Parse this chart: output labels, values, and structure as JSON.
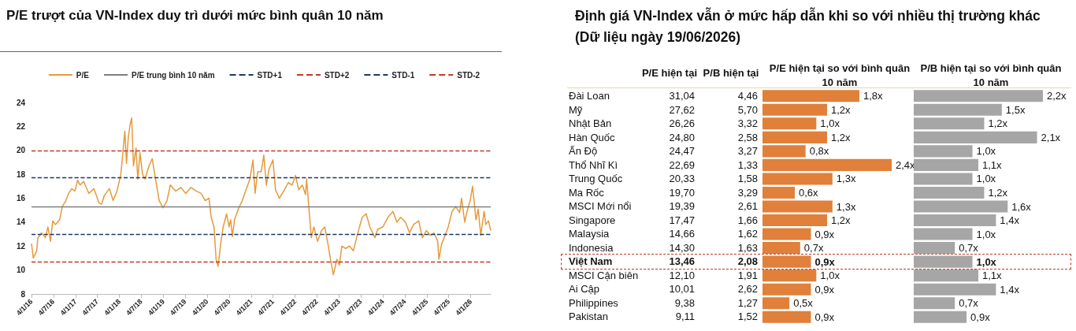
{
  "chart_data": [
    {
      "type": "line",
      "title": "P/E trượt của VN-Index duy trì dưới mức bình quân 10 năm",
      "legend": "top",
      "grid": false,
      "xlim": [
        "2016-01-04",
        "2026-06-19"
      ],
      "xticks": [
        {
          "value": "2016-01-04",
          "label": "4/1/16"
        },
        {
          "value": "2016-07-04",
          "label": "4/7/16"
        },
        {
          "value": "2017-01-04",
          "label": "4/1/17"
        },
        {
          "value": "2017-07-04",
          "label": "4/7/17"
        },
        {
          "value": "2018-01-04",
          "label": "4/1/18"
        },
        {
          "value": "2018-07-04",
          "label": "4/7/18"
        },
        {
          "value": "2019-01-04",
          "label": "4/1/19"
        },
        {
          "value": "2019-07-04",
          "label": "4/7/19"
        },
        {
          "value": "2020-01-04",
          "label": "4/1/20"
        },
        {
          "value": "2020-07-04",
          "label": "4/7/20"
        },
        {
          "value": "2021-01-04",
          "label": "4/1/21"
        },
        {
          "value": "2021-07-04",
          "label": "4/7/21"
        },
        {
          "value": "2022-01-04",
          "label": "4/1/22"
        },
        {
          "value": "2022-07-04",
          "label": "4/7/22"
        },
        {
          "value": "2023-01-04",
          "label": "4/1/23"
        },
        {
          "value": "2023-07-04",
          "label": "4/7/23"
        },
        {
          "value": "2024-01-04",
          "label": "4/1/24"
        },
        {
          "value": "2024-07-04",
          "label": "4/7/24"
        },
        {
          "value": "2025-01-04",
          "label": "4/1/25"
        },
        {
          "value": "2025-07-04",
          "label": "4/7/25"
        },
        {
          "value": "2026-01-04",
          "label": "4/1/26"
        }
      ],
      "ylim": [
        8,
        24
      ],
      "yticks": [
        8,
        10,
        12,
        14,
        16,
        18,
        20,
        22,
        24
      ],
      "series": [
        {
          "name": "P/E",
          "color": "#e59a3c",
          "x": [
            "2016-01-04",
            "2016-01-19",
            "2016-02-16",
            "2016-02-26",
            "2016-03-28",
            "2016-04-29",
            "2016-05-19",
            "2016-06-10",
            "2016-06-28",
            "2016-07-22",
            "2016-08-25",
            "2016-09-16",
            "2016-10-16",
            "2016-11-07",
            "2016-12-03",
            "2016-12-30",
            "2017-01-21",
            "2017-02-11",
            "2017-03-13",
            "2017-04-25",
            "2017-06-06",
            "2017-07-18",
            "2017-08-09",
            "2017-08-30",
            "2017-10-12",
            "2017-11-13",
            "2017-12-15",
            "2018-01-16",
            "2018-01-31",
            "2018-02-18",
            "2018-03-04",
            "2018-03-19",
            "2018-04-04",
            "2018-04-16",
            "2018-05-01",
            "2018-05-22",
            "2018-06-06",
            "2018-06-24",
            "2018-07-15",
            "2018-08-05",
            "2018-09-07",
            "2018-10-04",
            "2018-10-31",
            "2018-12-01",
            "2019-01-02",
            "2019-02-04",
            "2019-03-03",
            "2019-04-17",
            "2019-05-29",
            "2019-07-10",
            "2019-08-22",
            "2019-10-04",
            "2019-11-15",
            "2019-12-18",
            "2020-01-19",
            "2020-02-06",
            "2020-03-01",
            "2020-03-18",
            "2020-04-04",
            "2020-04-25",
            "2020-05-16",
            "2020-06-13",
            "2020-07-04",
            "2020-07-17",
            "2020-08-01",
            "2020-08-18",
            "2020-09-19",
            "2020-10-22",
            "2020-11-22",
            "2020-12-24",
            "2021-01-19",
            "2021-02-05",
            "2021-02-27",
            "2021-03-28",
            "2021-04-19",
            "2021-05-10",
            "2021-06-01",
            "2021-07-04",
            "2021-07-25",
            "2021-08-26",
            "2021-10-07",
            "2021-11-08",
            "2021-12-10",
            "2022-01-07",
            "2022-02-03",
            "2022-03-05",
            "2022-04-01",
            "2022-04-10",
            "2022-05-01",
            "2022-05-19",
            "2022-06-09",
            "2022-07-10",
            "2022-08-12",
            "2022-09-07",
            "2022-10-04",
            "2022-10-25",
            "2022-11-18",
            "2022-12-18",
            "2023-01-07",
            "2023-01-28",
            "2023-03-01",
            "2023-04-01",
            "2023-05-04",
            "2023-06-04",
            "2023-07-16",
            "2023-08-18",
            "2023-09-18",
            "2023-10-30",
            "2023-11-21",
            "2024-01-04",
            "2024-02-15",
            "2024-03-28",
            "2024-04-30",
            "2024-05-31",
            "2024-07-10",
            "2024-08-13",
            "2024-09-15",
            "2024-10-28",
            "2024-11-28",
            "2024-12-30",
            "2025-02-01",
            "2025-03-04",
            "2025-04-04",
            "2025-04-14",
            "2025-05-07",
            "2025-05-28",
            "2025-06-30",
            "2025-08-01",
            "2025-09-01",
            "2025-10-04",
            "2025-10-19",
            "2025-11-15",
            "2025-12-04",
            "2025-12-30",
            "2026-01-19",
            "2026-02-16",
            "2026-03-07",
            "2026-03-28",
            "2026-04-25",
            "2026-05-09",
            "2026-05-31",
            "2026-06-19"
          ],
          "values": [
            12.2,
            11.0,
            11.6,
            12.7,
            13.1,
            12.7,
            13.6,
            12.4,
            14.1,
            13.8,
            14.2,
            15.3,
            15.8,
            16.4,
            16.8,
            16.6,
            17.5,
            17.1,
            17.4,
            16.4,
            16.8,
            15.6,
            15.5,
            16.2,
            16.8,
            15.8,
            16.6,
            18.0,
            19.6,
            21.6,
            18.9,
            21.1,
            22.2,
            22.7,
            18.7,
            20.2,
            17.6,
            19.8,
            18.0,
            17.6,
            18.7,
            19.3,
            17.6,
            15.8,
            15.2,
            15.8,
            17.1,
            16.6,
            16.9,
            16.4,
            16.9,
            16.6,
            16.4,
            15.8,
            16.0,
            14.4,
            13.6,
            10.9,
            10.3,
            12.2,
            13.6,
            14.7,
            13.6,
            14.2,
            12.8,
            14.2,
            15.1,
            15.8,
            16.7,
            17.6,
            19.2,
            16.4,
            18.2,
            18.2,
            19.6,
            17.1,
            18.4,
            19.2,
            16.7,
            16.0,
            16.7,
            17.3,
            17.1,
            17.9,
            16.7,
            17.1,
            16.3,
            17.6,
            14.9,
            12.7,
            13.6,
            12.4,
            13.3,
            13.6,
            12.2,
            10.9,
            9.6,
            10.9,
            10.4,
            12.0,
            11.8,
            12.0,
            11.6,
            12.9,
            14.4,
            14.7,
            13.6,
            12.7,
            13.4,
            13.6,
            14.4,
            14.9,
            14.0,
            14.4,
            14.0,
            13.1,
            13.8,
            14.1,
            12.7,
            13.3,
            12.9,
            13.1,
            12.4,
            10.9,
            12.2,
            12.7,
            13.6,
            14.9,
            15.3,
            14.8,
            16.0,
            14.0,
            14.9,
            15.8,
            17.0,
            14.2,
            15.1,
            12.9,
            14.9,
            13.8,
            14.1,
            13.3
          ]
        }
      ],
      "ref_lines": [
        {
          "axis": "y",
          "value": 15.3,
          "label": "P/E trung bình 10 năm",
          "color": "#7f7f7f",
          "line_style": "solid"
        },
        {
          "axis": "y",
          "value": 17.7,
          "label": "STD+1",
          "color": "#1f3864",
          "line_style": "dashed"
        },
        {
          "axis": "y",
          "value": 20.0,
          "label": "STD+2",
          "color": "#c0392b",
          "line_style": "dashed"
        },
        {
          "axis": "y",
          "value": 13.0,
          "label": "STD-1",
          "color": "#1f3864",
          "line_style": "dashed"
        },
        {
          "axis": "y",
          "value": 10.7,
          "label": "STD-2",
          "color": "#c0392b",
          "line_style": "dashed"
        }
      ]
    },
    {
      "type": "other",
      "title": "Định giá VN-Index vẫn ở mức hấp dẫn khi so với nhiều thị trường khác (Dữ liệu ngày 19/06/2026)",
      "categories": [
        "Đài Loan",
        "Mỹ",
        "Nhật Bản",
        "Hàn Quốc",
        "Ấn Độ",
        "Thổ Nhĩ Kì",
        "Trung Quốc",
        "Ma Rốc",
        "MSCI Mới nổi",
        "Singapore",
        "Malaysia",
        "Indonesia",
        "Việt Nam",
        "MSCI Cận biên",
        "Ai Cập",
        "Philippines",
        "Pakistan"
      ],
      "series": [
        {
          "name": "P/E hiện tại",
          "values": [
            31.04,
            27.62,
            26.26,
            24.8,
            24.47,
            22.69,
            20.33,
            19.7,
            19.39,
            17.47,
            14.66,
            14.3,
            13.46,
            12.1,
            10.01,
            9.38,
            9.11
          ],
          "value_labels": [
            "31,04",
            "27,62",
            "26,26",
            "24,80",
            "24,47",
            "22,69",
            "20,33",
            "19,70",
            "19,39",
            "17,47",
            "14,66",
            "14,30",
            "13,46",
            "12,10",
            "10,01",
            "9,38",
            "9,11"
          ]
        },
        {
          "name": "P/B hiện tại",
          "values": [
            4.46,
            5.7,
            3.32,
            2.58,
            3.27,
            1.33,
            1.58,
            3.29,
            2.61,
            1.66,
            1.62,
            1.63,
            2.08,
            1.91,
            2.62,
            1.27,
            1.52
          ],
          "value_labels": [
            "4,46",
            "5,70",
            "3,32",
            "2,58",
            "3,27",
            "1,33",
            "1,58",
            "3,29",
            "2,61",
            "1,66",
            "1,62",
            "1,63",
            "2,08",
            "1,91",
            "2,62",
            "1,27",
            "1,52"
          ]
        }
      ]
    },
    {
      "type": "bar",
      "orientation": "horizontal",
      "title": "P/E hiện tại so với bình quân 10 năm",
      "tick_labels": false,
      "color": "#e0803a",
      "categories": [
        null,
        null,
        null,
        null,
        null,
        null,
        null,
        null,
        null,
        null,
        null,
        null,
        null,
        null,
        null,
        null,
        null
      ],
      "values": [
        1.8,
        1.2,
        1.0,
        1.2,
        0.8,
        2.4,
        1.3,
        0.6,
        1.3,
        1.2,
        0.9,
        0.7,
        0.9,
        1.0,
        0.9,
        0.5,
        0.9
      ],
      "value_labels": [
        "1,8x",
        "1,2x",
        "1,0x",
        "1,2x",
        "0,8x",
        "2,4x",
        "1,3x",
        "0,6x",
        "1,3x",
        "1,2x",
        "0,9x",
        "0,7x",
        "0,9x",
        "1,0x",
        "0,9x",
        "0,5x",
        "0,9x"
      ]
    },
    {
      "type": "bar",
      "orientation": "horizontal",
      "title": "P/B hiện tại so với bình quân 10 năm",
      "tick_labels": false,
      "color": "#a6a6a6",
      "categories": [
        null,
        null,
        null,
        null,
        null,
        null,
        null,
        null,
        null,
        null,
        null,
        null,
        null,
        null,
        null,
        null,
        null
      ],
      "values": [
        2.2,
        1.5,
        1.2,
        2.1,
        1.0,
        1.1,
        1.0,
        1.2,
        1.6,
        1.4,
        1.0,
        0.7,
        1.0,
        1.1,
        1.4,
        0.7,
        0.9
      ],
      "value_labels": [
        "2,2x",
        "1,5x",
        "1,2x",
        "2,1x",
        "1,0x",
        "1,1x",
        "1,0x",
        "1,2x",
        "1,6x",
        "1,4x",
        "1,0x",
        "0,7x",
        "1,0x",
        "1,1x",
        "1,4x",
        "0,7x",
        "0,9x"
      ]
    }
  ]
}
